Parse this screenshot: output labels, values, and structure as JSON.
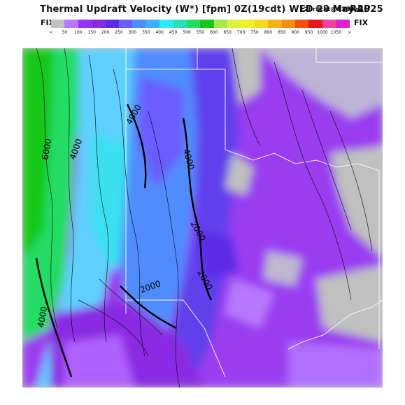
{
  "header": {
    "title": "Thermal Updraft Velocity (W*) [fpm] 0Z(19cdt) WED 28 May 2025",
    "forecast": "12hrFcst@1335z",
    "model": "RAP"
  },
  "legend": {
    "left_label": "FIX",
    "right_label": "FIX",
    "colors": [
      "#c0c0c0",
      "#b878ff",
      "#9932ff",
      "#8a2be2",
      "#5c2ce8",
      "#6b5cff",
      "#4f8cff",
      "#3ab0ff",
      "#2ee8ff",
      "#28e0b4",
      "#22dc64",
      "#18c818",
      "#a8e84c",
      "#dcf040",
      "#f0f028",
      "#f8d820",
      "#f8b018",
      "#f88c10",
      "#f05010",
      "#e81818",
      "#f040a0",
      "#e020d0"
    ],
    "ticks": [
      "<",
      "50",
      "100",
      "150",
      "200",
      "250",
      "300",
      "350",
      "400",
      "450",
      "500",
      "550",
      "600",
      "650",
      "700",
      "750",
      "800",
      "850",
      "900",
      "950",
      "1000",
      "1050",
      ">"
    ]
  },
  "contours": {
    "labels": [
      "6000",
      "4000",
      "2000",
      "2000",
      "2000",
      "4000",
      "4000",
      "4000"
    ]
  }
}
